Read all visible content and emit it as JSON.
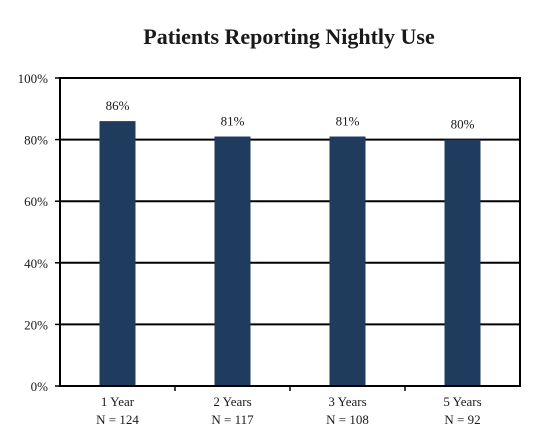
{
  "chart_data": {
    "type": "bar",
    "title": "Patients Reporting Nightly Use",
    "xlabel": "",
    "ylabel": "",
    "categories": [
      "1 Year",
      "2 Years",
      "3 Years",
      "5 Years"
    ],
    "sample_sizes": [
      "N = 124",
      "N = 117",
      "N = 108",
      "N = 92"
    ],
    "values": [
      86,
      81,
      81,
      80
    ],
    "data_labels": [
      "86%",
      "81%",
      "81%",
      "80%"
    ],
    "ylim": [
      0,
      100
    ],
    "yticks": [
      0,
      20,
      40,
      60,
      80,
      100
    ],
    "ytick_labels": [
      "0%",
      "20%",
      "40%",
      "60%",
      "80%",
      "100%"
    ],
    "grid": true,
    "legend": "none",
    "bar_color": "#1f3b5e"
  }
}
